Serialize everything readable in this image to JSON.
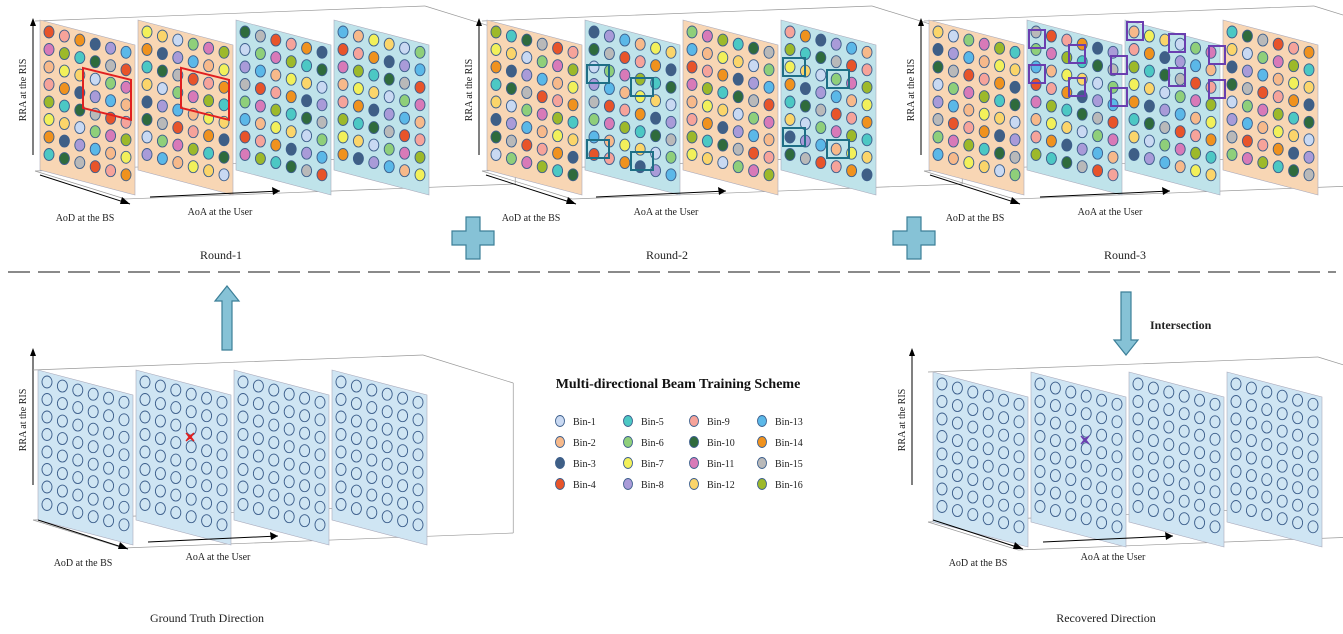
{
  "title": "Multi-directional Beam Training Scheme",
  "axis_labels": {
    "rra": "RRA at the RIS",
    "aod": "AoD at the BS",
    "aoa": "AoA at the User"
  },
  "panels": {
    "round1": {
      "caption": "Round-1"
    },
    "round2": {
      "caption": "Round-2"
    },
    "round3": {
      "caption": "Round-3"
    },
    "ground_truth": {
      "caption": "Ground Truth Direction"
    },
    "recovered": {
      "caption": "Recovered Direction"
    }
  },
  "intersection_label": "Intersection",
  "legend": [
    {
      "label": "Bin-1",
      "color": "#c9d9f2"
    },
    {
      "label": "Bin-2",
      "color": "#f7b98a"
    },
    {
      "label": "Bin-3",
      "color": "#3f5f86"
    },
    {
      "label": "Bin-4",
      "color": "#e8542a"
    },
    {
      "label": "Bin-5",
      "color": "#4cc8c4"
    },
    {
      "label": "Bin-6",
      "color": "#8fcf7a"
    },
    {
      "label": "Bin-7",
      "color": "#f2f05a"
    },
    {
      "label": "Bin-8",
      "color": "#a99bd8"
    },
    {
      "label": "Bin-9",
      "color": "#f6a39a"
    },
    {
      "label": "Bin-10",
      "color": "#2f6b3c"
    },
    {
      "label": "Bin-11",
      "color": "#d87ab8"
    },
    {
      "label": "Bin-12",
      "color": "#fbd56a"
    },
    {
      "label": "Bin-13",
      "color": "#5bb8e8"
    },
    {
      "label": "Bin-14",
      "color": "#f0921e"
    },
    {
      "label": "Bin-15",
      "color": "#b9b9b9"
    },
    {
      "label": "Bin-16",
      "color": "#9db92a"
    }
  ],
  "colors": {
    "orange_panel": "#f8d6b4",
    "blue_panel": "#bfe3ea",
    "light_blue_panel": "#cfe5f3",
    "dot_stroke": "#3d5f8c",
    "round1_box": "#e02020",
    "round2_box": "#1f6f86",
    "round3_box": "#6a3fb0",
    "plus": "#86c2d6",
    "arrow": "#86c2d6",
    "gt_marker": "#e02020",
    "rec_marker": "#6a3fb0"
  }
}
